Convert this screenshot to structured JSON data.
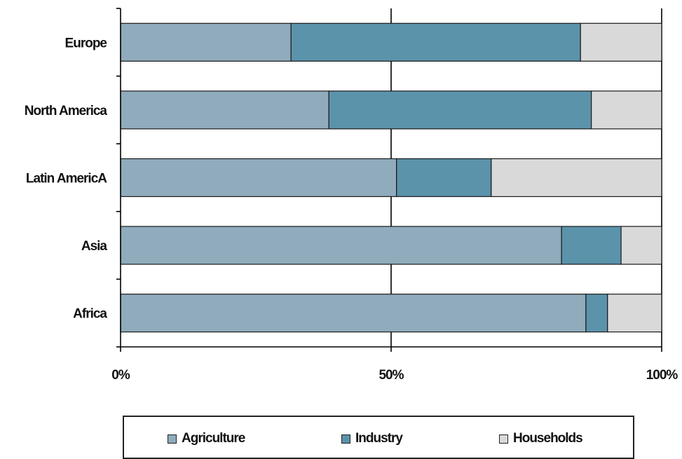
{
  "chart_data": {
    "type": "bar",
    "orientation": "horizontal",
    "stacked": "percent",
    "categories": [
      "Europe",
      "North America",
      "Latin AmericA",
      "Asia",
      "Africa"
    ],
    "series": [
      {
        "name": "Agriculture",
        "color": "#8fabbc",
        "values": [
          31.5,
          38.5,
          51,
          81.5,
          86
        ]
      },
      {
        "name": "Industry",
        "color": "#5b93ab",
        "values": [
          53.5,
          48.5,
          17.5,
          11,
          4
        ]
      },
      {
        "name": "Households",
        "color": "#d9d9d9",
        "values": [
          15,
          13,
          31.5,
          7.5,
          10
        ]
      }
    ],
    "xlim": [
      0,
      100
    ],
    "xticks": [
      "0%",
      "50%",
      "100%"
    ],
    "xtick_values": [
      0,
      50,
      100
    ],
    "gridlines": "vertical at 50% and 100%",
    "legend_position": "bottom"
  }
}
